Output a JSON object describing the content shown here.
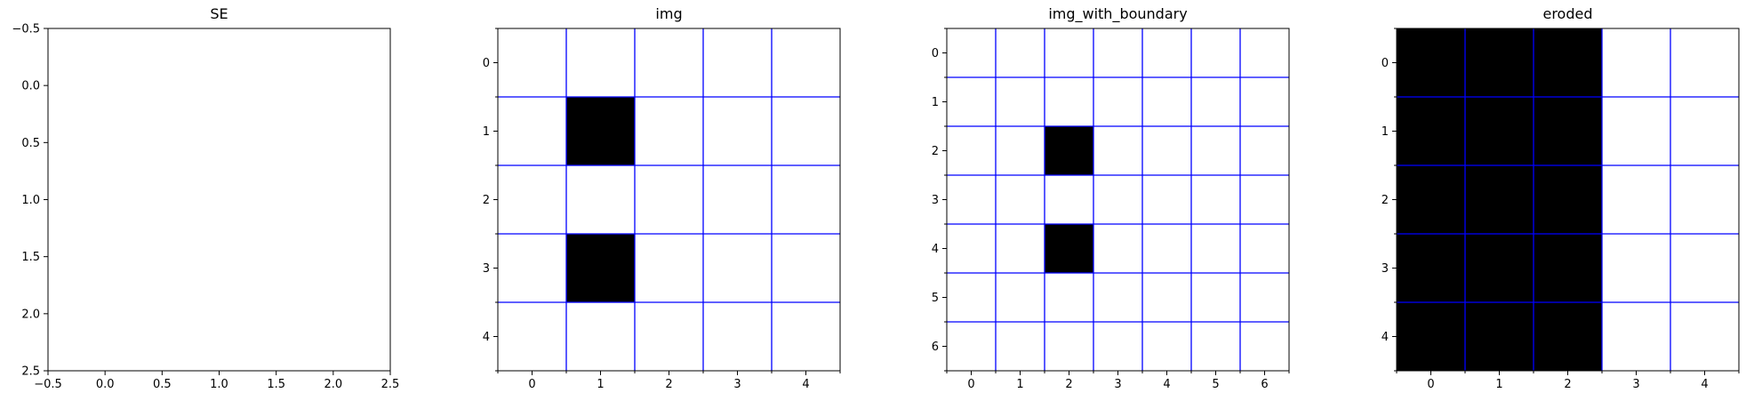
{
  "chart_data": [
    {
      "type": "heatmap",
      "title": "SE",
      "x_ticks": [
        "−0.5",
        "0.0",
        "0.5",
        "1.0",
        "1.5",
        "2.0",
        "2.5"
      ],
      "y_ticks": [
        "−0.5",
        "0.0",
        "0.5",
        "1.0",
        "1.5",
        "2.0",
        "2.5"
      ],
      "xlim": [
        -0.5,
        2.5
      ],
      "ylim": [
        2.5,
        -0.5
      ],
      "rows": 0,
      "cols": 0,
      "values": [],
      "grid": false
    },
    {
      "type": "heatmap",
      "title": "img",
      "x_ticks": [
        "0",
        "1",
        "2",
        "3",
        "4"
      ],
      "y_ticks": [
        "0",
        "1",
        "2",
        "3",
        "4"
      ],
      "xlim": [
        -0.5,
        4.5
      ],
      "ylim": [
        4.5,
        -0.5
      ],
      "rows": 5,
      "cols": 5,
      "values": [
        [
          0,
          0,
          0,
          0,
          0
        ],
        [
          0,
          1,
          0,
          0,
          0
        ],
        [
          0,
          0,
          0,
          0,
          0
        ],
        [
          0,
          1,
          0,
          0,
          0
        ],
        [
          0,
          0,
          0,
          0,
          0
        ]
      ],
      "grid": true
    },
    {
      "type": "heatmap",
      "title": "img_with_boundary",
      "x_ticks": [
        "0",
        "1",
        "2",
        "3",
        "4",
        "5",
        "6"
      ],
      "y_ticks": [
        "0",
        "1",
        "2",
        "3",
        "4",
        "5",
        "6"
      ],
      "xlim": [
        -0.5,
        6.5
      ],
      "ylim": [
        6.5,
        -0.5
      ],
      "rows": 7,
      "cols": 7,
      "values": [
        [
          0,
          0,
          0,
          0,
          0,
          0,
          0
        ],
        [
          0,
          0,
          0,
          0,
          0,
          0,
          0
        ],
        [
          0,
          0,
          1,
          0,
          0,
          0,
          0
        ],
        [
          0,
          0,
          0,
          0,
          0,
          0,
          0
        ],
        [
          0,
          0,
          1,
          0,
          0,
          0,
          0
        ],
        [
          0,
          0,
          0,
          0,
          0,
          0,
          0
        ],
        [
          0,
          0,
          0,
          0,
          0,
          0,
          0
        ]
      ],
      "grid": true
    },
    {
      "type": "heatmap",
      "title": "eroded",
      "x_ticks": [
        "0",
        "1",
        "2",
        "3",
        "4"
      ],
      "y_ticks": [
        "0",
        "1",
        "2",
        "3",
        "4"
      ],
      "xlim": [
        -0.5,
        4.5
      ],
      "ylim": [
        4.5,
        -0.5
      ],
      "rows": 5,
      "cols": 5,
      "values": [
        [
          1,
          1,
          1,
          0,
          0
        ],
        [
          1,
          1,
          1,
          0,
          0
        ],
        [
          1,
          1,
          1,
          0,
          0
        ],
        [
          1,
          1,
          1,
          0,
          0
        ],
        [
          1,
          1,
          1,
          0,
          0
        ]
      ],
      "grid": true
    }
  ],
  "colors": {
    "on_cell": "#000000",
    "off_cell": "#ffffff",
    "grid_line": "#0000ff",
    "axis": "#000000"
  }
}
